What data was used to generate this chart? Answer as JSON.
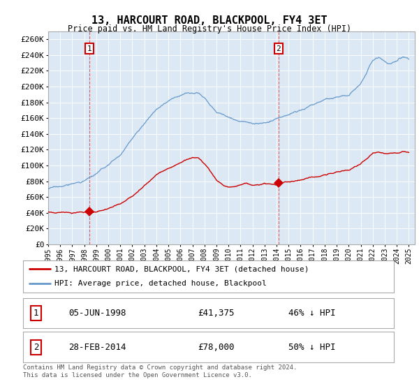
{
  "title": "13, HARCOURT ROAD, BLACKPOOL, FY4 3ET",
  "subtitle": "Price paid vs. HM Land Registry's House Price Index (HPI)",
  "ylim": [
    0,
    270000
  ],
  "yticks": [
    0,
    20000,
    40000,
    60000,
    80000,
    100000,
    120000,
    140000,
    160000,
    180000,
    200000,
    220000,
    240000,
    260000
  ],
  "xlim_start": 1995.0,
  "xlim_end": 2025.5,
  "background_color": "#dce9f5",
  "hpi_color": "#6699cc",
  "price_color": "#cc0000",
  "sale1_date": 1998.42,
  "sale1_price": 41375,
  "sale2_date": 2014.16,
  "sale2_price": 78000,
  "legend_label1": "13, HARCOURT ROAD, BLACKPOOL, FY4 3ET (detached house)",
  "legend_label2": "HPI: Average price, detached house, Blackpool",
  "table_row1_num": "1",
  "table_row1_date": "05-JUN-1998",
  "table_row1_price": "£41,375",
  "table_row1_hpi": "46% ↓ HPI",
  "table_row2_num": "2",
  "table_row2_date": "28-FEB-2014",
  "table_row2_price": "£78,000",
  "table_row2_hpi": "50% ↓ HPI",
  "footnote": "Contains HM Land Registry data © Crown copyright and database right 2024.\nThis data is licensed under the Open Government Licence v3.0.",
  "xtick_years": [
    1995,
    1996,
    1997,
    1998,
    1999,
    2000,
    2001,
    2002,
    2003,
    2004,
    2005,
    2006,
    2007,
    2008,
    2009,
    2010,
    2011,
    2012,
    2013,
    2014,
    2015,
    2016,
    2017,
    2018,
    2019,
    2020,
    2021,
    2022,
    2023,
    2024,
    2025
  ]
}
